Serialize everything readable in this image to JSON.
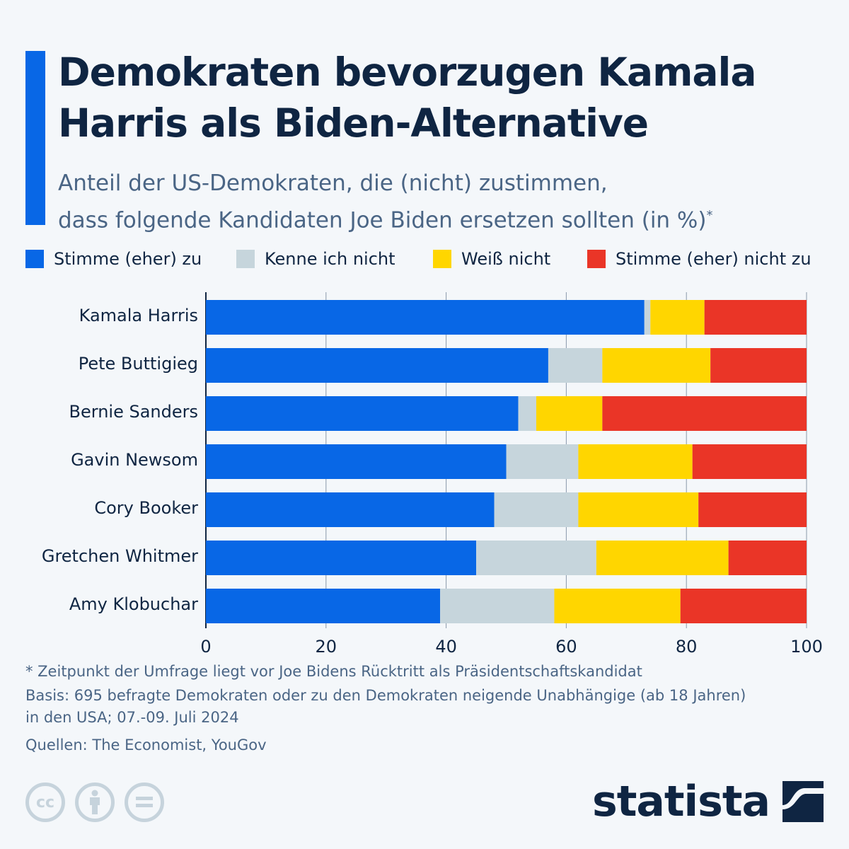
{
  "header": {
    "title": "Demokraten bevorzugen Kamala Harris als Biden-Alternative",
    "subtitle_line1": "Anteil der US-Demokraten, die (nicht) zustimmen,",
    "subtitle_line2": "dass folgende Kandidaten Joe Biden ersetzen sollten (in %)",
    "subtitle_mark": "*"
  },
  "colors": {
    "accent": "#0867e6",
    "agree": "#0867e6",
    "unknown": "#c6d5dc",
    "dontknow": "#ffd600",
    "disagree": "#ea3527",
    "text_dark": "#0f2542",
    "gridline": "#8a99ab"
  },
  "chart_data": {
    "type": "bar",
    "orientation": "horizontal",
    "stacked": true,
    "title": "Demokraten bevorzugen Kamala Harris als Biden-Alternative",
    "xlabel": "",
    "ylabel": "",
    "xlim": [
      0,
      100
    ],
    "xticks": [
      0,
      20,
      40,
      60,
      80,
      100
    ],
    "grid": true,
    "legend_position": "top",
    "categories": [
      "Kamala Harris",
      "Pete Buttigieg",
      "Bernie Sanders",
      "Gavin Newsom",
      "Cory Booker",
      "Gretchen Whitmer",
      "Amy Klobuchar"
    ],
    "series": [
      {
        "name": "Stimme (eher) zu",
        "color": "#0867e6",
        "values": [
          73,
          57,
          52,
          50,
          48,
          45,
          39
        ]
      },
      {
        "name": "Kenne ich nicht",
        "color": "#c6d5dc",
        "values": [
          1,
          9,
          3,
          12,
          14,
          20,
          19
        ]
      },
      {
        "name": "Weiß nicht",
        "color": "#ffd600",
        "values": [
          9,
          18,
          11,
          19,
          20,
          22,
          21
        ]
      },
      {
        "name": "Stimme (eher) nicht zu",
        "color": "#ea3527",
        "values": [
          17,
          16,
          34,
          19,
          18,
          13,
          21
        ]
      }
    ]
  },
  "footer": {
    "note": "* Zeitpunkt der Umfrage liegt vor Joe Bidens Rücktritt als Präsidentschaftskandidat",
    "basis_line1": "Basis: 695 befragte Demokraten oder zu den Demokraten neigende Unabhängige (ab 18 Jahren)",
    "basis_line2": "in den USA; 07.-09. Juli 2024",
    "sources": "Quellen: The Economist, YouGov",
    "cc_icons": [
      "cc-icon",
      "attribution-icon",
      "no-derivatives-icon"
    ],
    "cc_label": "cc",
    "cc_eq": "=",
    "logo_text": "statista"
  }
}
